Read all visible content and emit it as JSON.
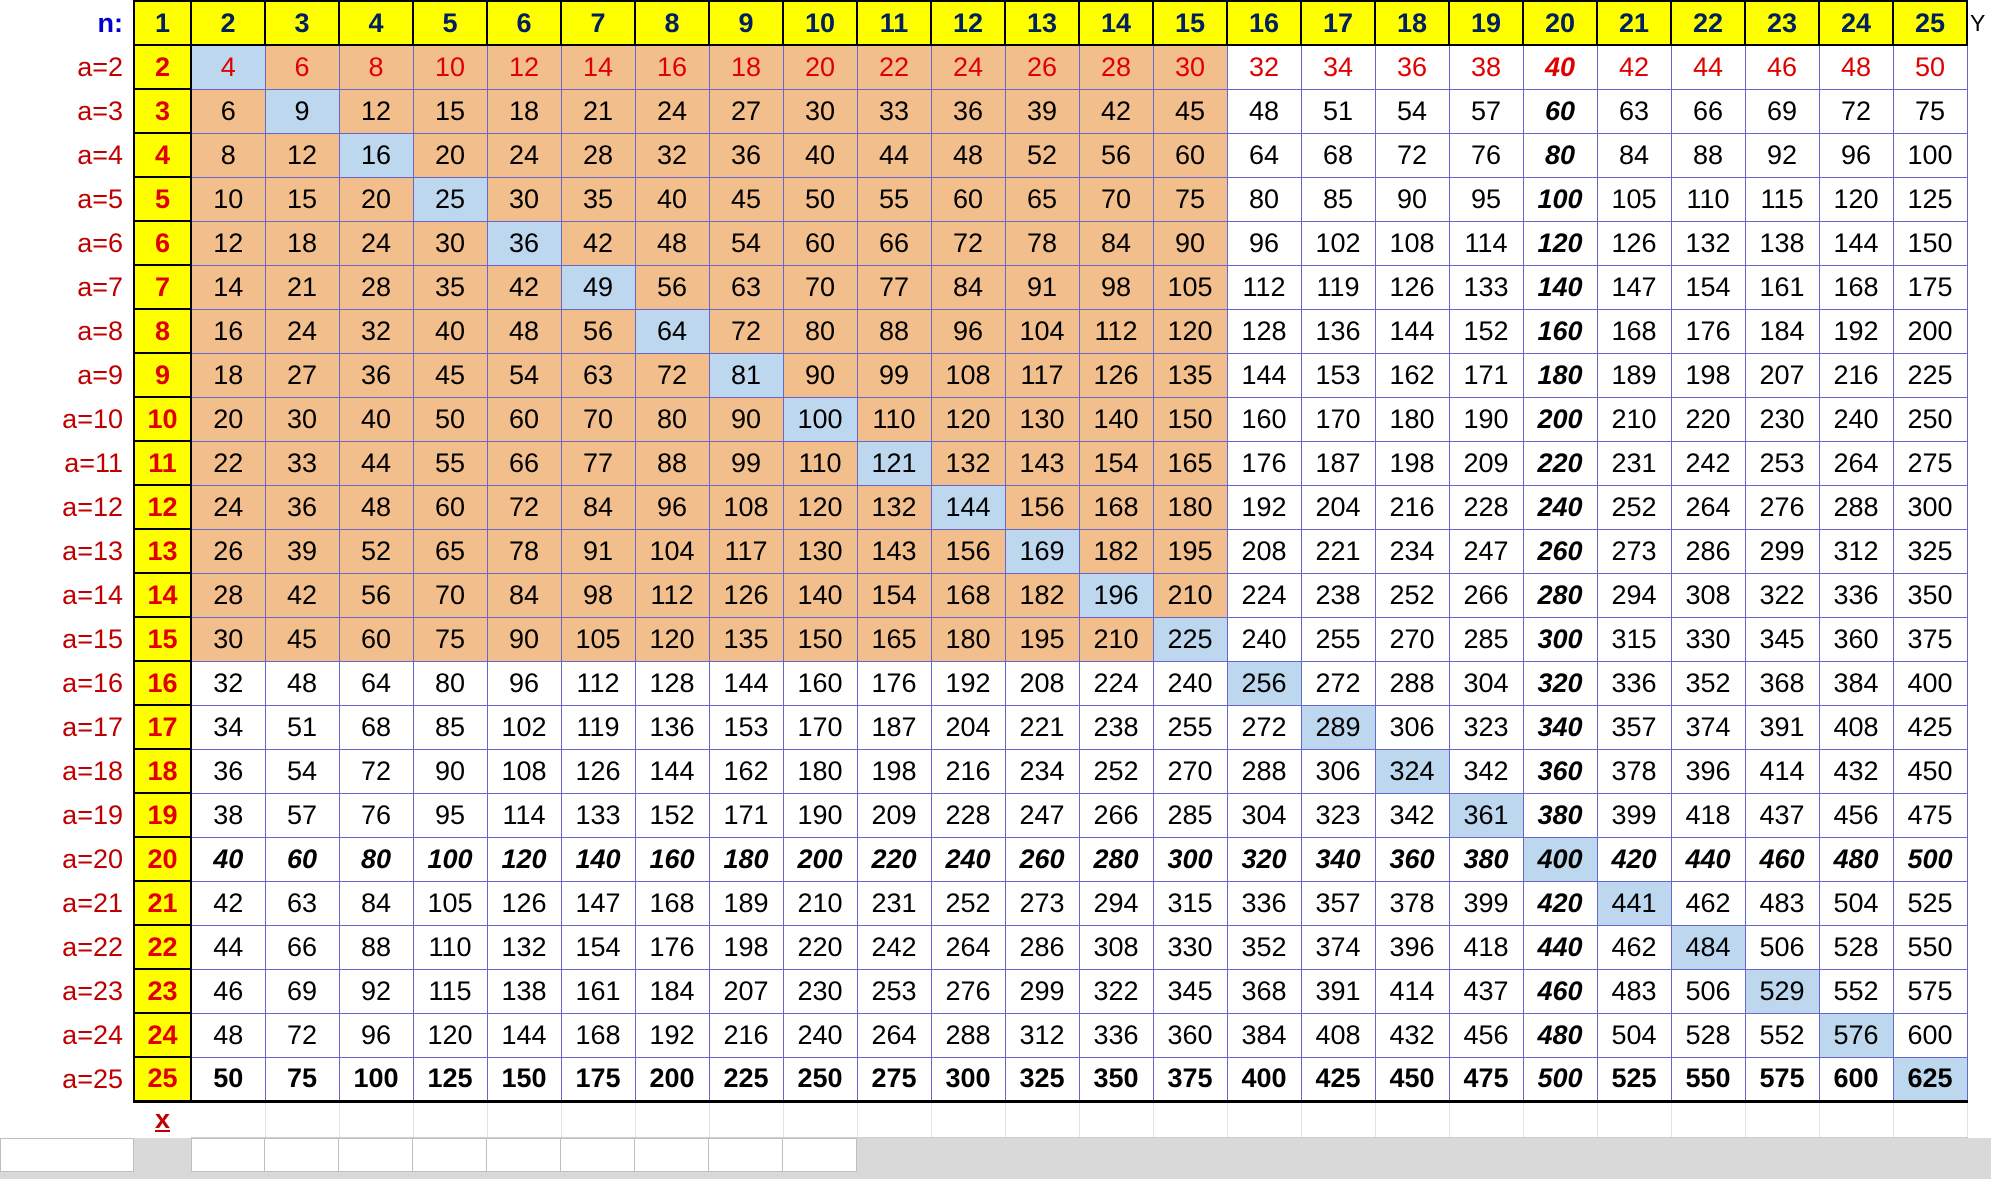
{
  "header": {
    "corner_label": "n:",
    "columns": [
      1,
      2,
      3,
      4,
      5,
      6,
      7,
      8,
      9,
      10,
      11,
      12,
      13,
      14,
      15,
      16,
      17,
      18,
      19,
      20,
      21,
      22,
      23,
      24,
      25
    ],
    "y_axis_label": "Y"
  },
  "x_axis_label": "x",
  "rows": [
    {
      "label": "a=2",
      "a": 2,
      "values": [
        2,
        4,
        6,
        8,
        10,
        12,
        14,
        16,
        18,
        20,
        22,
        24,
        26,
        28,
        30,
        32,
        34,
        36,
        38,
        40,
        42,
        44,
        46,
        48,
        50
      ]
    },
    {
      "label": "a=3",
      "a": 3,
      "values": [
        3,
        6,
        9,
        12,
        15,
        18,
        21,
        24,
        27,
        30,
        33,
        36,
        39,
        42,
        45,
        48,
        51,
        54,
        57,
        60,
        63,
        66,
        69,
        72,
        75
      ]
    },
    {
      "label": "a=4",
      "a": 4,
      "values": [
        4,
        8,
        12,
        16,
        20,
        24,
        28,
        32,
        36,
        40,
        44,
        48,
        52,
        56,
        60,
        64,
        68,
        72,
        76,
        80,
        84,
        88,
        92,
        96,
        100
      ]
    },
    {
      "label": "a=5",
      "a": 5,
      "values": [
        5,
        10,
        15,
        20,
        25,
        30,
        35,
        40,
        45,
        50,
        55,
        60,
        65,
        70,
        75,
        80,
        85,
        90,
        95,
        100,
        105,
        110,
        115,
        120,
        125
      ]
    },
    {
      "label": "a=6",
      "a": 6,
      "values": [
        6,
        12,
        18,
        24,
        30,
        36,
        42,
        48,
        54,
        60,
        66,
        72,
        78,
        84,
        90,
        96,
        102,
        108,
        114,
        120,
        126,
        132,
        138,
        144,
        150
      ]
    },
    {
      "label": "a=7",
      "a": 7,
      "values": [
        7,
        14,
        21,
        28,
        35,
        42,
        49,
        56,
        63,
        70,
        77,
        84,
        91,
        98,
        105,
        112,
        119,
        126,
        133,
        140,
        147,
        154,
        161,
        168,
        175
      ]
    },
    {
      "label": "a=8",
      "a": 8,
      "values": [
        8,
        16,
        24,
        32,
        40,
        48,
        56,
        64,
        72,
        80,
        88,
        96,
        104,
        112,
        120,
        128,
        136,
        144,
        152,
        160,
        168,
        176,
        184,
        192,
        200
      ]
    },
    {
      "label": "a=9",
      "a": 9,
      "values": [
        9,
        18,
        27,
        36,
        45,
        54,
        63,
        72,
        81,
        90,
        99,
        108,
        117,
        126,
        135,
        144,
        153,
        162,
        171,
        180,
        189,
        198,
        207,
        216,
        225
      ]
    },
    {
      "label": "a=10",
      "a": 10,
      "values": [
        10,
        20,
        30,
        40,
        50,
        60,
        70,
        80,
        90,
        100,
        110,
        120,
        130,
        140,
        150,
        160,
        170,
        180,
        190,
        200,
        210,
        220,
        230,
        240,
        250
      ]
    },
    {
      "label": "a=11",
      "a": 11,
      "values": [
        11,
        22,
        33,
        44,
        55,
        66,
        77,
        88,
        99,
        110,
        121,
        132,
        143,
        154,
        165,
        176,
        187,
        198,
        209,
        220,
        231,
        242,
        253,
        264,
        275
      ]
    },
    {
      "label": "a=12",
      "a": 12,
      "values": [
        12,
        24,
        36,
        48,
        60,
        72,
        84,
        96,
        108,
        120,
        132,
        144,
        156,
        168,
        180,
        192,
        204,
        216,
        228,
        240,
        252,
        264,
        276,
        288,
        300
      ]
    },
    {
      "label": "a=13",
      "a": 13,
      "values": [
        13,
        26,
        39,
        52,
        65,
        78,
        91,
        104,
        117,
        130,
        143,
        156,
        169,
        182,
        195,
        208,
        221,
        234,
        247,
        260,
        273,
        286,
        299,
        312,
        325
      ]
    },
    {
      "label": "a=14",
      "a": 14,
      "values": [
        14,
        28,
        42,
        56,
        70,
        84,
        98,
        112,
        126,
        140,
        154,
        168,
        182,
        196,
        210,
        224,
        238,
        252,
        266,
        280,
        294,
        308,
        322,
        336,
        350
      ]
    },
    {
      "label": "a=15",
      "a": 15,
      "values": [
        15,
        30,
        45,
        60,
        75,
        90,
        105,
        120,
        135,
        150,
        165,
        180,
        195,
        210,
        225,
        240,
        255,
        270,
        285,
        300,
        315,
        330,
        345,
        360,
        375
      ]
    },
    {
      "label": "a=16",
      "a": 16,
      "values": [
        16,
        32,
        48,
        64,
        80,
        96,
        112,
        128,
        144,
        160,
        176,
        192,
        208,
        224,
        240,
        256,
        272,
        288,
        304,
        320,
        336,
        352,
        368,
        384,
        400
      ]
    },
    {
      "label": "a=17",
      "a": 17,
      "values": [
        17,
        34,
        51,
        68,
        85,
        102,
        119,
        136,
        153,
        170,
        187,
        204,
        221,
        238,
        255,
        272,
        289,
        306,
        323,
        340,
        357,
        374,
        391,
        408,
        425
      ]
    },
    {
      "label": "a=18",
      "a": 18,
      "values": [
        18,
        36,
        54,
        72,
        90,
        108,
        126,
        144,
        162,
        180,
        198,
        216,
        234,
        252,
        270,
        288,
        306,
        324,
        342,
        360,
        378,
        396,
        414,
        432,
        450
      ]
    },
    {
      "label": "a=19",
      "a": 19,
      "values": [
        19,
        38,
        57,
        76,
        95,
        114,
        133,
        152,
        171,
        190,
        209,
        228,
        247,
        266,
        285,
        304,
        323,
        342,
        361,
        380,
        399,
        418,
        437,
        456,
        475
      ]
    },
    {
      "label": "a=20",
      "a": 20,
      "values": [
        20,
        40,
        60,
        80,
        100,
        120,
        140,
        160,
        180,
        200,
        220,
        240,
        260,
        280,
        300,
        320,
        340,
        360,
        380,
        400,
        420,
        440,
        460,
        480,
        500
      ]
    },
    {
      "label": "a=21",
      "a": 21,
      "values": [
        21,
        42,
        63,
        84,
        105,
        126,
        147,
        168,
        189,
        210,
        231,
        252,
        273,
        294,
        315,
        336,
        357,
        378,
        399,
        420,
        441,
        462,
        483,
        504,
        525
      ]
    },
    {
      "label": "a=22",
      "a": 22,
      "values": [
        22,
        44,
        66,
        88,
        110,
        132,
        154,
        176,
        198,
        220,
        242,
        264,
        286,
        308,
        330,
        352,
        374,
        396,
        418,
        440,
        462,
        484,
        506,
        528,
        550
      ]
    },
    {
      "label": "a=23",
      "a": 23,
      "values": [
        23,
        46,
        69,
        92,
        115,
        138,
        161,
        184,
        207,
        230,
        253,
        276,
        299,
        322,
        345,
        368,
        391,
        414,
        437,
        460,
        483,
        506,
        529,
        552,
        575
      ]
    },
    {
      "label": "a=24",
      "a": 24,
      "values": [
        24,
        48,
        72,
        96,
        120,
        144,
        168,
        192,
        216,
        240,
        264,
        288,
        312,
        336,
        360,
        384,
        408,
        432,
        456,
        480,
        504,
        528,
        552,
        576,
        600
      ]
    },
    {
      "label": "a=25",
      "a": 25,
      "values": [
        25,
        50,
        75,
        100,
        125,
        150,
        175,
        200,
        225,
        250,
        275,
        300,
        325,
        350,
        375,
        400,
        425,
        450,
        475,
        500,
        525,
        550,
        575,
        600,
        625
      ]
    }
  ],
  "styling_notes": {
    "tan_region": "rows 2-15 by columns 2-15",
    "diagonal_highlight": "cells where a equals n",
    "bold_italic": "row a=20 and column n=20",
    "bold_row": "a=25",
    "red_row": "a=2"
  },
  "colors": {
    "header_bg": "#FFFF00",
    "header_text": "#002060",
    "corner_text": "#0000CC",
    "label_text": "#C00000",
    "red_text": "#E00000",
    "tan_bg": "#F2BE8C",
    "diag_bg": "#BDD7EE",
    "grid": "#6666CC",
    "page_gray": "#D9D9D9"
  }
}
